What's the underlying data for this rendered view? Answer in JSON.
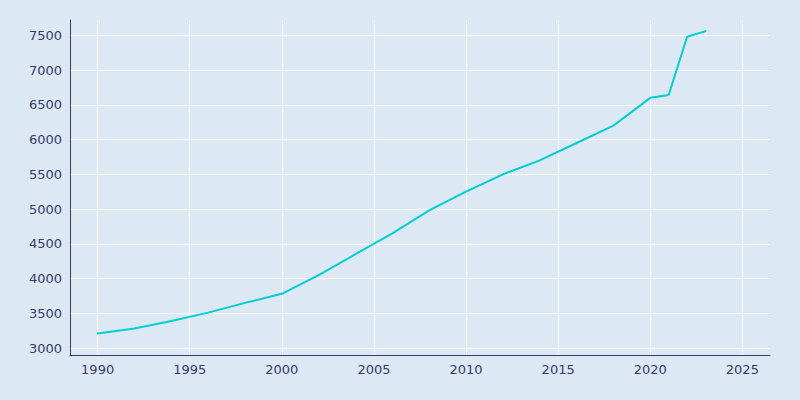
{
  "chart_data": {
    "type": "line",
    "x": [
      1990,
      1992,
      1994,
      1996,
      1998,
      2000,
      2002,
      2004,
      2006,
      2008,
      2010,
      2012,
      2014,
      2016,
      2018,
      2020,
      2021,
      2022,
      2023
    ],
    "values": [
      3210,
      3280,
      3390,
      3510,
      3650,
      3780,
      4050,
      4350,
      4650,
      4980,
      5250,
      5500,
      5700,
      5950,
      6200,
      6600,
      6640,
      7480,
      7560
    ],
    "color": "#00CED1",
    "xlim": [
      1988.5,
      2026.5
    ],
    "ylim": [
      2900,
      7720
    ],
    "xticks": [
      1990,
      1995,
      2000,
      2005,
      2010,
      2015,
      2020,
      2025
    ],
    "yticks": [
      3000,
      3500,
      4000,
      4500,
      5000,
      5500,
      6000,
      6500,
      7000,
      7500
    ],
    "grid": true
  }
}
